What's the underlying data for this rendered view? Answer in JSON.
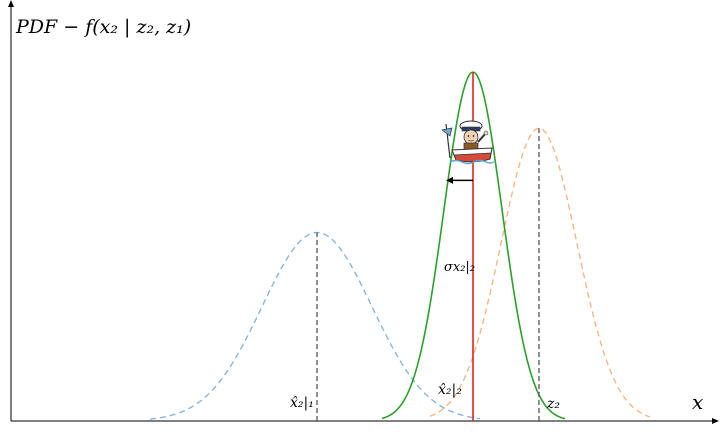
{
  "chart_data": {
    "type": "line",
    "title": "",
    "ylabel": "PDF − f(x₂ | z₂, z₁)",
    "xlabel": "x",
    "grid": false,
    "legend": "none",
    "xlim": [
      0,
      720
    ],
    "ylim": [
      0,
      1
    ],
    "series": [
      {
        "kind": "gaussian",
        "mean": 317,
        "sigma": 55,
        "peak": 0.47,
        "range": [
          150,
          480
        ],
        "style": "dashed",
        "color": "#7fb2dc",
        "label": "x̂₂|₁"
      },
      {
        "kind": "gaussian",
        "mean": 539,
        "sigma": 38,
        "peak": 0.73,
        "range": [
          430,
          650
        ],
        "style": "dashed",
        "color": "#ffb07a",
        "label": "z₂"
      },
      {
        "kind": "gaussian",
        "mean": 473,
        "sigma": 29,
        "peak": 0.87,
        "range": [
          382,
          565
        ],
        "style": "solid",
        "color": "#2ca02c",
        "label": "x̂₂|₂"
      }
    ],
    "annotations": {
      "sigma_label": "σx₂|₂",
      "vertical_markers": [
        {
          "x": 317,
          "y_to": 0.47,
          "color": "#555555",
          "style": "dashed",
          "label": "x̂₂|₁"
        },
        {
          "x": 539,
          "y_to": 0.73,
          "color": "#555555",
          "style": "dashed",
          "label": "z₂"
        },
        {
          "x": 473,
          "y_to": 0.87,
          "color": "#e0241b",
          "style": "solid",
          "label": "x̂₂|₂"
        }
      ],
      "sigma_arrow": {
        "from_x": 473,
        "to_x": 446,
        "y": 0.6
      }
    },
    "icons": [
      "boat-sailor-icon"
    ]
  }
}
